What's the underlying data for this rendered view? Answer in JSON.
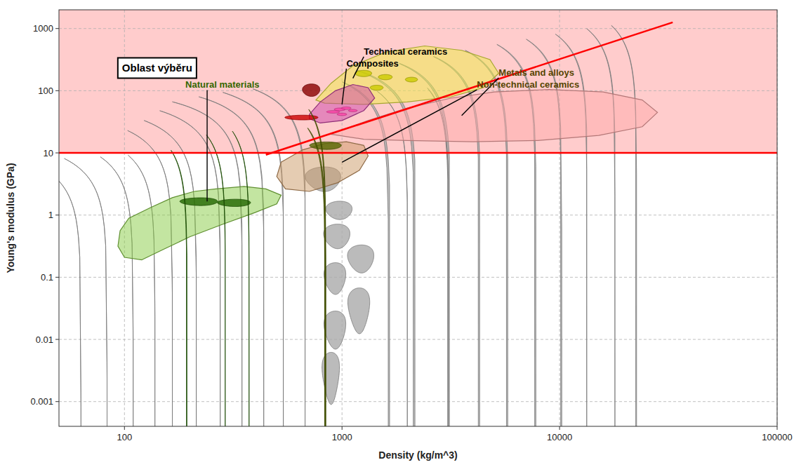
{
  "chart_data": {
    "type": "region",
    "xlabel": "Density (kg/m^3)",
    "ylabel": "Young's modulus (GPa)",
    "log": true,
    "grid": true,
    "xlim": [
      50,
      100000
    ],
    "ylim": [
      0.0004,
      2000
    ],
    "xticks": [
      100,
      1000,
      10000,
      100000
    ],
    "yticks": [
      0.001,
      0.01,
      0.1,
      1,
      10,
      100,
      1000
    ],
    "series": [
      {
        "type": "span",
        "color": "#ffcccc",
        "y": [
          10
        ]
      },
      {
        "type": "ellipse",
        "color": "#aaaaaa",
        "x": [
          63.096,
          83.176,
          109.65,
          138.04,
          165.96,
          213.8,
          275.42,
          346.74,
          436.52,
          537.03,
          676.08,
          831.76,
          891.25,
          933.25,
          933.25,
          954.99,
          977.24,
          2089.3,
          3020.0,
          4168.7,
          5623.4,
          7585.8,
          10000,
          13183,
          17783,
          22387,
          1584.9,
          1202.3,
          1230.3,
          1995.3,
          3020.0
        ],
        "y": [
          0.001122,
          0.0033113,
          0.01122,
          0.0302,
          0.075858,
          0.15849,
          0.302,
          0.52481,
          0.91201,
          1.5849,
          2.7542,
          4.1687,
          0.0035481,
          0.017783,
          0.1122,
          0.50119,
          1.2589,
          17.783,
          22.387,
          28.184,
          33.113,
          38.019,
          41.687,
          44.668,
          47.863,
          39.811,
          14.125,
          0.039811,
          0.22387,
          1.9055,
          13.183
        ],
        "width": [
          41.387,
          62.686,
          66.627,
          70.68,
          133.27,
          193.09,
          276.86,
          384.67,
          461.41,
          539.83,
          610.58,
          308.17,
          164.41,
          215.34,
          215.34,
          264.74,
          270.86,
          1886.9,
          2425.1,
          3141.6,
          3962.2,
          4975.6,
          6076.9,
          7378,
          9105,
          10401,
          1194.4,
          277.5,
          341.0,
          1116.7,
          1118.9
        ],
        "height": [
          0.00062796,
          0.0020121,
          0.0057444,
          0.014031,
          0.042456,
          0.10396,
          0.21278,
          0.3955,
          0.7324,
          1.1944,
          1.9407,
          3.5554,
          0.0053012,
          0.021623,
          0.1186,
          0.42745,
          0.82579,
          10.805,
          12.53,
          14.43,
          15.384,
          17.663,
          17.402,
          18.646,
          17.733,
          14.75,
          7.232,
          0.054965,
          0.21356,
          0.6169,
          3.654
        ],
        "angle": [
          -15,
          -15,
          -15,
          -15,
          -20,
          -20,
          -20,
          -20,
          -20,
          -20,
          -20,
          0,
          0,
          0,
          0,
          0,
          0,
          -12,
          -12,
          -12,
          -12,
          -12,
          -12,
          -12,
          -12,
          -12,
          -12,
          0,
          0,
          -10,
          -10
        ]
      },
      {
        "type": "polygon",
        "color": "#88cc44",
        "x": [
          120.23,
          151.36,
          199.53,
          281.84,
          398.11,
          501.19,
          524.81,
          446.68,
          354.81,
          263.03,
          208.93,
          165.96,
          131.83,
          104.71,
          95.499,
          93.325,
          100,
          120.23
        ],
        "y": [
          0.19055,
          0.28184,
          0.44668,
          0.70795,
          1.0965,
          1.5136,
          2.0893,
          2.6303,
          2.884,
          2.6303,
          2.3988,
          1.9055,
          1.3183,
          0.89125,
          0.56234,
          0.31623,
          0.20893,
          0.19055
        ]
      },
      {
        "type": "polygon",
        "color": "#cc9966",
        "x": [
          524.81,
          660.69,
          831.76,
          1047.1,
          1258.9,
          1318.3,
          1202.3,
          954.99,
          707.95,
          549.54,
          501.19,
          524.81
        ],
        "y": [
          7.0795,
          11.22,
          14.125,
          15.136,
          13.183,
          8.9125,
          5.2481,
          3.3113,
          2.3988,
          2.6303,
          4.1687,
          7.0795
        ]
      },
      {
        "type": "polygon",
        "color": "#eeee44",
        "x": [
          758.58,
          891.25,
          1122.0,
          1584.9,
          2398.8,
          3548.1,
          4786.3,
          5248.1,
          4466.8,
          3162.3,
          1995.3,
          1258.9,
          831.76,
          758.58
        ],
        "y": [
          70.795,
          131.83,
          251.19,
          416.87,
          524.81,
          446.68,
          316.23,
          190.55,
          112.2,
          79.433,
          66.069,
          60.256,
          63.096,
          70.795
        ]
      },
      {
        "type": "polygon",
        "color": "#ffaaaa",
        "x": [
          891.25,
          1318.3,
          1995.3,
          3162.3,
          5011.9,
          8912.5,
          15849,
          23988,
          28184,
          23988,
          15136,
          7943.3,
          3981.1,
          1995.3,
          1258.9,
          891.25
        ],
        "y": [
          19.953,
          33.113,
          52.481,
          75.858,
          95.499,
          104.71,
          95.499,
          70.795,
          44.668,
          26.303,
          19.055,
          15.849,
          15.136,
          15.849,
          16.596,
          19.953
        ]
      },
      {
        "type": "polygon",
        "color": "#cc44aa",
        "x": [
          707.95,
          794.33,
          933.25,
          1122.0,
          1318.3,
          1412.5,
          1258.9,
          1000,
          794.33,
          707.95,
          707.95
        ],
        "y": [
          41.687,
          66.069,
          100,
          125.89,
          112.2,
          75.858,
          47.863,
          33.113,
          30.2,
          35.481,
          41.687
        ]
      },
      {
        "type": "ellipse",
        "color": "#226600",
        "x": [
          223.87,
          323.59,
          190.55,
          288.4,
          371.54
        ],
        "y": [
          1.6596,
          1.5849,
          1.2303,
          1.122,
          1.1482
        ],
        "width": [
          88.19,
          112.32,
          57.25,
          106.86,
          123.75
        ],
        "height": [
          0.4755,
          0.4245,
          0.3125,
          0.2693,
          0.2649
        ],
        "angle": [
          0,
          0,
          -20,
          -20,
          -20
        ]
      },
      {
        "type": "ellipse",
        "color": "#cccc00",
        "x": [
          1258.9,
          1584.9,
          2089.3,
          1445.4
        ],
        "y": [
          190.55,
          165.96,
          151.36,
          112.2
        ],
        "width": [
          220.6,
          233.7,
          269.6,
          199.8
        ],
        "height": [
          43.98,
          32.15,
          26.52,
          20.7
        ],
        "angle": [
          0,
          0,
          0,
          0
        ]
      },
      {
        "type": "ellipse",
        "color": "#cc0000",
        "x": [
          660.69
        ],
        "y": [
          37.154
        ],
        "width": [
          229.34
        ],
        "height": [
          6.511
        ],
        "angle": [
          0
        ]
      },
      {
        "type": "ellipse",
        "color": "#880000",
        "x": [
          724.44
        ],
        "y": [
          104.71
        ],
        "width": [
          133.64
        ],
        "height": [
          47.66
        ],
        "angle": [
          0
        ]
      },
      {
        "type": "ellipse",
        "color": "#556600",
        "x": [
          851.14,
          812.83,
          794.33
        ],
        "y": [
          13.183,
          10,
          7.5858
        ],
        "width": [
          283.5,
          232.86,
          201.73
        ],
        "height": [
          3.654,
          2.2144,
          1.4695
        ],
        "angle": [
          0,
          -20,
          -10
        ]
      },
      {
        "type": "ellipse",
        "color": "#ff44aa",
        "x": [
          912.01,
          977.24,
          1047.1,
          1122.0,
          1000
        ],
        "y": [
          45.709,
          50.119,
          52.481,
          47.863,
          41.687
        ],
        "width": [
          125.52,
          112.63,
          106.19,
          103.4,
          101.3
        ],
        "height": [
          4.26,
          5.08,
          4.835,
          3.969,
          3.841
        ],
        "angle": [
          0,
          0,
          0,
          0,
          0
        ]
      },
      {
        "type": "hline",
        "color": "#ff0000",
        "y": [
          10
        ]
      },
      {
        "type": "line",
        "color": "#ff0000",
        "line_style": "solid",
        "x": [
          446.68,
          33113
        ],
        "y": [
          9.3325,
          1258.9
        ]
      }
    ],
    "annotations": [
      {
        "text": "Oblast výběru"
      },
      {
        "text": "Technical ceramics",
        "x": 1122.0,
        "y": 158.49,
        "text_x": 1258.9,
        "text_y": 380.19,
        "color": "#000000"
      },
      {
        "text": "Composites",
        "x": 1000,
        "y": 60.256,
        "text_x": 1047.1,
        "text_y": 301.99,
        "color": "#000000"
      },
      {
        "text": "Natural materials",
        "x": 239.88,
        "y": 1.6596,
        "text_x": 190.55,
        "text_y": 120.23,
        "color": "#336600"
      },
      {
        "text": "Metals and alloys",
        "x": 3548.1,
        "y": 39.811,
        "text_x": 5248.1,
        "text_y": 173.78,
        "color": "#554400"
      },
      {
        "text": "Non-technical ceramics",
        "x": 1000,
        "y": 7.0795,
        "text_x": 4168.7,
        "text_y": 131.83,
        "color": "#554400"
      }
    ]
  }
}
